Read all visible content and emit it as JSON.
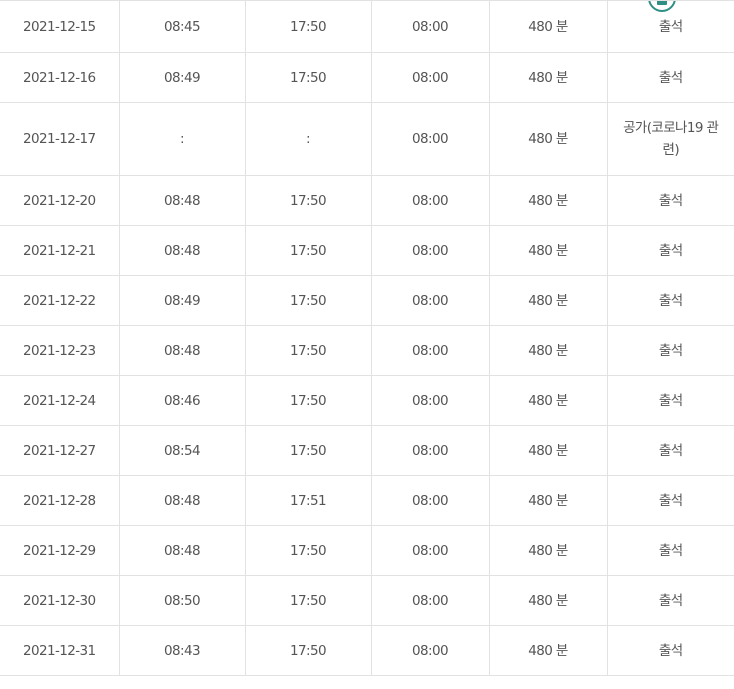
{
  "rows": [
    {
      "date": "2021-12-15",
      "in_time": "08:45",
      "out_time": "17:50",
      "work_time": "08:00",
      "minutes": "480 분",
      "status": "출석"
    },
    {
      "date": "2021-12-16",
      "in_time": "08:49",
      "out_time": "17:50",
      "work_time": "08:00",
      "minutes": "480 분",
      "status": "출석"
    },
    {
      "date": "2021-12-17",
      "in_time": ":",
      "out_time": ":",
      "work_time": "08:00",
      "minutes": "480 분",
      "status": "공가(코로나19 관련)"
    },
    {
      "date": "2021-12-20",
      "in_time": "08:48",
      "out_time": "17:50",
      "work_time": "08:00",
      "minutes": "480 분",
      "status": "출석"
    },
    {
      "date": "2021-12-21",
      "in_time": "08:48",
      "out_time": "17:50",
      "work_time": "08:00",
      "minutes": "480 분",
      "status": "출석"
    },
    {
      "date": "2021-12-22",
      "in_time": "08:49",
      "out_time": "17:50",
      "work_time": "08:00",
      "minutes": "480 분",
      "status": "출석"
    },
    {
      "date": "2021-12-23",
      "in_time": "08:48",
      "out_time": "17:50",
      "work_time": "08:00",
      "minutes": "480 분",
      "status": "출석"
    },
    {
      "date": "2021-12-24",
      "in_time": "08:46",
      "out_time": "17:50",
      "work_time": "08:00",
      "minutes": "480 분",
      "status": "출석"
    },
    {
      "date": "2021-12-27",
      "in_time": "08:54",
      "out_time": "17:50",
      "work_time": "08:00",
      "minutes": "480 분",
      "status": "출석"
    },
    {
      "date": "2021-12-28",
      "in_time": "08:48",
      "out_time": "17:51",
      "work_time": "08:00",
      "minutes": "480 분",
      "status": "출석"
    },
    {
      "date": "2021-12-29",
      "in_time": "08:48",
      "out_time": "17:50",
      "work_time": "08:00",
      "minutes": "480 분",
      "status": "출석"
    },
    {
      "date": "2021-12-30",
      "in_time": "08:50",
      "out_time": "17:50",
      "work_time": "08:00",
      "minutes": "480 분",
      "status": "출석"
    },
    {
      "date": "2021-12-31",
      "in_time": "08:43",
      "out_time": "17:50",
      "work_time": "08:00",
      "minutes": "480 분",
      "status": "출석"
    }
  ],
  "colors": {
    "text": "#555555",
    "border": "#e2e2e2",
    "accent": "#2f8f84"
  },
  "icons": {
    "top_button": "scroll-top-icon"
  }
}
